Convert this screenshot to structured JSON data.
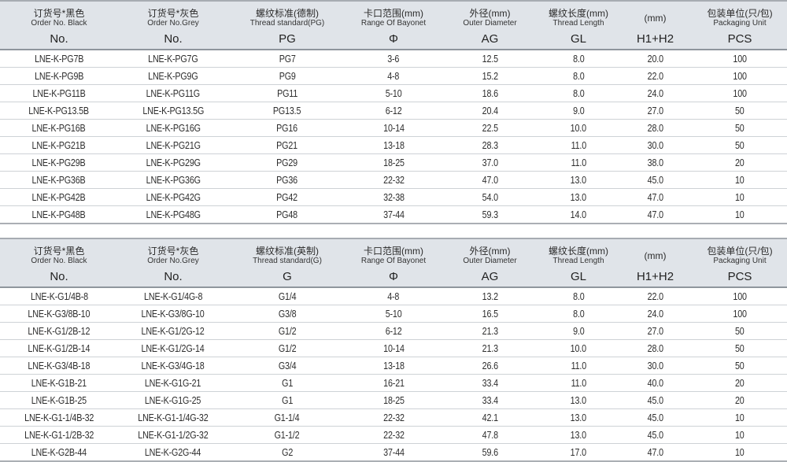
{
  "colors": {
    "header_bg": "#e0e4e9",
    "header_border_top": "#a7acb2",
    "header_border_bottom": "#8f969d",
    "row_divider": "#ced2d6",
    "table_bottom_border": "#abafb4",
    "text": "#2b2b2b"
  },
  "tables": [
    {
      "id": "pg-thread-table",
      "columns": [
        {
          "cn": "订货号*黑色",
          "en": "Order No. Black",
          "sym": "No."
        },
        {
          "cn": "订货号*灰色",
          "en": "Order No.Grey",
          "sym": "No."
        },
        {
          "cn": "螺纹标准(德制)",
          "en": "Thread standard(PG)",
          "sym": "PG"
        },
        {
          "cn": "卡口范围(mm)",
          "en": "Range Of Bayonet",
          "sym": "Φ"
        },
        {
          "cn": "外径(mm)",
          "en": "Outer Diameter",
          "sym": "AG"
        },
        {
          "cn": "螺纹长度(mm)",
          "en": "Thread Length",
          "sym": "GL"
        },
        {
          "cn": "(mm)",
          "en": "",
          "sym": "H1+H2"
        },
        {
          "cn": "包装单位(只/包)",
          "en": "Packaging Unit",
          "sym": "PCS"
        }
      ],
      "rows": [
        [
          "LNE-K-PG7B",
          "LNE-K-PG7G",
          "PG7",
          "3-6",
          "12.5",
          "8.0",
          "20.0",
          "100"
        ],
        [
          "LNE-K-PG9B",
          "LNE-K-PG9G",
          "PG9",
          "4-8",
          "15.2",
          "8.0",
          "22.0",
          "100"
        ],
        [
          "LNE-K-PG11B",
          "LNE-K-PG11G",
          "PG11",
          "5-10",
          "18.6",
          "8.0",
          "24.0",
          "100"
        ],
        [
          "LNE-K-PG13.5B",
          "LNE-K-PG13.5G",
          "PG13.5",
          "6-12",
          "20.4",
          "9.0",
          "27.0",
          "50"
        ],
        [
          "LNE-K-PG16B",
          "LNE-K-PG16G",
          "PG16",
          "10-14",
          "22.5",
          "10.0",
          "28.0",
          "50"
        ],
        [
          "LNE-K-PG21B",
          "LNE-K-PG21G",
          "PG21",
          "13-18",
          "28.3",
          "11.0",
          "30.0",
          "50"
        ],
        [
          "LNE-K-PG29B",
          "LNE-K-PG29G",
          "PG29",
          "18-25",
          "37.0",
          "11.0",
          "38.0",
          "20"
        ],
        [
          "LNE-K-PG36B",
          "LNE-K-PG36G",
          "PG36",
          "22-32",
          "47.0",
          "13.0",
          "45.0",
          "10"
        ],
        [
          "LNE-K-PG42B",
          "LNE-K-PG42G",
          "PG42",
          "32-38",
          "54.0",
          "13.0",
          "47.0",
          "10"
        ],
        [
          "LNE-K-PG48B",
          "LNE-K-PG48G",
          "PG48",
          "37-44",
          "59.3",
          "14.0",
          "47.0",
          "10"
        ]
      ]
    },
    {
      "id": "g-thread-table",
      "columns": [
        {
          "cn": "订货号*黑色",
          "en": "Order No. Black",
          "sym": "No."
        },
        {
          "cn": "订货号*灰色",
          "en": "Order No.Grey",
          "sym": "No."
        },
        {
          "cn": "螺纹标准(英制)",
          "en": "Thread standard(G)",
          "sym": "G"
        },
        {
          "cn": "卡口范围(mm)",
          "en": "Range Of Bayonet",
          "sym": "Φ"
        },
        {
          "cn": "外径(mm)",
          "en": "Outer Diameter",
          "sym": "AG"
        },
        {
          "cn": "螺纹长度(mm)",
          "en": "Thread Length",
          "sym": "GL"
        },
        {
          "cn": "(mm)",
          "en": "",
          "sym": "H1+H2"
        },
        {
          "cn": "包装单位(只/包)",
          "en": "Packaging Unit",
          "sym": "PCS"
        }
      ],
      "rows": [
        [
          "LNE-K-G1/4B-8",
          "LNE-K-G1/4G-8",
          "G1/4",
          "4-8",
          "13.2",
          "8.0",
          "22.0",
          "100"
        ],
        [
          "LNE-K-G3/8B-10",
          "LNE-K-G3/8G-10",
          "G3/8",
          "5-10",
          "16.5",
          "8.0",
          "24.0",
          "100"
        ],
        [
          "LNE-K-G1/2B-12",
          "LNE-K-G1/2G-12",
          "G1/2",
          "6-12",
          "21.3",
          "9.0",
          "27.0",
          "50"
        ],
        [
          "LNE-K-G1/2B-14",
          "LNE-K-G1/2G-14",
          "G1/2",
          "10-14",
          "21.3",
          "10.0",
          "28.0",
          "50"
        ],
        [
          "LNE-K-G3/4B-18",
          "LNE-K-G3/4G-18",
          "G3/4",
          "13-18",
          "26.6",
          "11.0",
          "30.0",
          "50"
        ],
        [
          "LNE-K-G1B-21",
          "LNE-K-G1G-21",
          "G1",
          "16-21",
          "33.4",
          "11.0",
          "40.0",
          "20"
        ],
        [
          "LNE-K-G1B-25",
          "LNE-K-G1G-25",
          "G1",
          "18-25",
          "33.4",
          "13.0",
          "45.0",
          "20"
        ],
        [
          "LNE-K-G1-1/4B-32",
          "LNE-K-G1-1/4G-32",
          "G1-1/4",
          "22-32",
          "42.1",
          "13.0",
          "45.0",
          "10"
        ],
        [
          "LNE-K-G1-1/2B-32",
          "LNE-K-G1-1/2G-32",
          "G1-1/2",
          "22-32",
          "47.8",
          "13.0",
          "45.0",
          "10"
        ],
        [
          "LNE-K-G2B-44",
          "LNE-K-G2G-44",
          "G2",
          "37-44",
          "59.6",
          "17.0",
          "47.0",
          "10"
        ]
      ]
    }
  ]
}
